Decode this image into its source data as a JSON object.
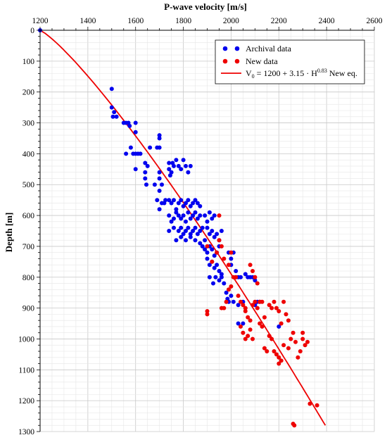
{
  "chart_data": {
    "type": "scatter",
    "title": "P-wave velocity [m/s]",
    "xlabel": "P-wave velocity [m/s]",
    "ylabel": "Depth [m]",
    "xlim": [
      1200,
      2600
    ],
    "ylim": [
      0,
      1300
    ],
    "y_inverted": true,
    "x_axis_position": "top",
    "x_ticks": [
      1200,
      1400,
      1600,
      1800,
      2000,
      2200,
      2400,
      2600
    ],
    "y_ticks": [
      0,
      100,
      200,
      300,
      400,
      500,
      600,
      700,
      800,
      900,
      1000,
      1100,
      1200,
      1300
    ],
    "grid": true,
    "legend_position": "top-right",
    "series": [
      {
        "name": "Archival data",
        "kind": "scatter",
        "color": "#0000ee",
        "points": [
          [
            1200,
            0
          ],
          [
            1500,
            190
          ],
          [
            1500,
            250
          ],
          [
            1505,
            280
          ],
          [
            1520,
            280
          ],
          [
            1510,
            265
          ],
          [
            1550,
            300
          ],
          [
            1560,
            300
          ],
          [
            1570,
            300
          ],
          [
            1575,
            310
          ],
          [
            1600,
            300
          ],
          [
            1600,
            330
          ],
          [
            1560,
            400
          ],
          [
            1590,
            400
          ],
          [
            1600,
            400
          ],
          [
            1610,
            400
          ],
          [
            1580,
            380
          ],
          [
            1600,
            450
          ],
          [
            1640,
            430
          ],
          [
            1650,
            440
          ],
          [
            1640,
            460
          ],
          [
            1620,
            400
          ],
          [
            1660,
            380
          ],
          [
            1690,
            380
          ],
          [
            1700,
            340
          ],
          [
            1700,
            350
          ],
          [
            1700,
            380
          ],
          [
            1640,
            480
          ],
          [
            1645,
            500
          ],
          [
            1680,
            500
          ],
          [
            1700,
            460
          ],
          [
            1700,
            480
          ],
          [
            1710,
            500
          ],
          [
            1690,
            550
          ],
          [
            1700,
            520
          ],
          [
            1700,
            580
          ],
          [
            1710,
            560
          ],
          [
            1720,
            560
          ],
          [
            1725,
            550
          ],
          [
            1740,
            430
          ],
          [
            1740,
            450
          ],
          [
            1745,
            470
          ],
          [
            1750,
            460
          ],
          [
            1755,
            430
          ],
          [
            1760,
            440
          ],
          [
            1770,
            420
          ],
          [
            1780,
            440
          ],
          [
            1790,
            450
          ],
          [
            1800,
            420
          ],
          [
            1810,
            440
          ],
          [
            1820,
            460
          ],
          [
            1830,
            440
          ],
          [
            1740,
            550
          ],
          [
            1750,
            560
          ],
          [
            1760,
            550
          ],
          [
            1770,
            580
          ],
          [
            1780,
            560
          ],
          [
            1790,
            550
          ],
          [
            1800,
            570
          ],
          [
            1810,
            560
          ],
          [
            1820,
            550
          ],
          [
            1830,
            570
          ],
          [
            1840,
            560
          ],
          [
            1850,
            550
          ],
          [
            1860,
            560
          ],
          [
            1870,
            570
          ],
          [
            1740,
            600
          ],
          [
            1750,
            620
          ],
          [
            1760,
            610
          ],
          [
            1770,
            590
          ],
          [
            1780,
            600
          ],
          [
            1790,
            610
          ],
          [
            1800,
            600
          ],
          [
            1810,
            620
          ],
          [
            1820,
            590
          ],
          [
            1830,
            610
          ],
          [
            1840,
            600
          ],
          [
            1850,
            590
          ],
          [
            1860,
            610
          ],
          [
            1870,
            600
          ],
          [
            1740,
            650
          ],
          [
            1760,
            640
          ],
          [
            1780,
            650
          ],
          [
            1790,
            640
          ],
          [
            1800,
            660
          ],
          [
            1810,
            650
          ],
          [
            1820,
            640
          ],
          [
            1830,
            660
          ],
          [
            1840,
            650
          ],
          [
            1850,
            640
          ],
          [
            1860,
            660
          ],
          [
            1870,
            650
          ],
          [
            1880,
            640
          ],
          [
            1770,
            680
          ],
          [
            1790,
            670
          ],
          [
            1810,
            680
          ],
          [
            1830,
            670
          ],
          [
            1850,
            680
          ],
          [
            1870,
            690
          ],
          [
            1890,
            680
          ],
          [
            1890,
            600
          ],
          [
            1900,
            620
          ],
          [
            1910,
            590
          ],
          [
            1920,
            610
          ],
          [
            1930,
            600
          ],
          [
            1900,
            640
          ],
          [
            1910,
            660
          ],
          [
            1920,
            650
          ],
          [
            1930,
            670
          ],
          [
            1940,
            660
          ],
          [
            1950,
            680
          ],
          [
            1960,
            650
          ],
          [
            1950,
            700
          ],
          [
            1880,
            700
          ],
          [
            1890,
            710
          ],
          [
            1900,
            720
          ],
          [
            1910,
            700
          ],
          [
            1920,
            710
          ],
          [
            1930,
            730
          ],
          [
            1940,
            720
          ],
          [
            1900,
            740
          ],
          [
            1910,
            760
          ],
          [
            1920,
            750
          ],
          [
            1930,
            770
          ],
          [
            1940,
            760
          ],
          [
            1950,
            780
          ],
          [
            1960,
            790
          ],
          [
            1910,
            800
          ],
          [
            1925,
            820
          ],
          [
            1935,
            800
          ],
          [
            1950,
            810
          ],
          [
            1960,
            800
          ],
          [
            1970,
            820
          ],
          [
            1980,
            850
          ],
          [
            1990,
            720
          ],
          [
            2000,
            740
          ],
          [
            2000,
            760
          ],
          [
            2010,
            720
          ],
          [
            2020,
            780
          ],
          [
            2020,
            800
          ],
          [
            2030,
            800
          ],
          [
            1985,
            870
          ],
          [
            1990,
            880
          ],
          [
            2000,
            860
          ],
          [
            2010,
            880
          ],
          [
            2030,
            890
          ],
          [
            2050,
            880
          ],
          [
            2040,
            800
          ],
          [
            2060,
            790
          ],
          [
            2070,
            800
          ],
          [
            2080,
            800
          ],
          [
            2090,
            800
          ],
          [
            2100,
            810
          ],
          [
            2030,
            950
          ],
          [
            2050,
            950
          ],
          [
            2100,
            890
          ],
          [
            2110,
            880
          ],
          [
            2120,
            880
          ],
          [
            2200,
            960
          ]
        ]
      },
      {
        "name": "New data",
        "kind": "scatter",
        "color": "#ee0000",
        "points": [
          [
            1950,
            600
          ],
          [
            1900,
            700
          ],
          [
            1920,
            750
          ],
          [
            1940,
            720
          ],
          [
            1950,
            680
          ],
          [
            1960,
            700
          ],
          [
            1970,
            740
          ],
          [
            1990,
            760
          ],
          [
            2000,
            720
          ],
          [
            2010,
            800
          ],
          [
            2000,
            830
          ],
          [
            1990,
            840
          ],
          [
            1900,
            910
          ],
          [
            1900,
            920
          ],
          [
            1960,
            900
          ],
          [
            1970,
            900
          ],
          [
            1980,
            880
          ],
          [
            2020,
            800
          ],
          [
            2030,
            860
          ],
          [
            2040,
            880
          ],
          [
            2050,
            890
          ],
          [
            2060,
            900
          ],
          [
            2060,
            910
          ],
          [
            2070,
            930
          ],
          [
            2080,
            940
          ],
          [
            2090,
            890
          ],
          [
            2100,
            880
          ],
          [
            2110,
            900
          ],
          [
            2120,
            880
          ],
          [
            2080,
            760
          ],
          [
            2090,
            780
          ],
          [
            2100,
            800
          ],
          [
            2110,
            820
          ],
          [
            2130,
            880
          ],
          [
            2040,
            960
          ],
          [
            2050,
            980
          ],
          [
            2060,
            1000
          ],
          [
            2070,
            990
          ],
          [
            2080,
            970
          ],
          [
            2090,
            1000
          ],
          [
            2120,
            950
          ],
          [
            2130,
            960
          ],
          [
            2140,
            930
          ],
          [
            2160,
            890
          ],
          [
            2170,
            900
          ],
          [
            2180,
            880
          ],
          [
            2140,
            1030
          ],
          [
            2150,
            1040
          ],
          [
            2160,
            990
          ],
          [
            2170,
            1000
          ],
          [
            2180,
            1040
          ],
          [
            2190,
            1050
          ],
          [
            2190,
            900
          ],
          [
            2200,
            910
          ],
          [
            2210,
            950
          ],
          [
            2220,
            880
          ],
          [
            2230,
            920
          ],
          [
            2240,
            940
          ],
          [
            2200,
            1060
          ],
          [
            2210,
            1070
          ],
          [
            2200,
            1080
          ],
          [
            2220,
            1020
          ],
          [
            2240,
            1030
          ],
          [
            2250,
            1000
          ],
          [
            2260,
            980
          ],
          [
            2270,
            1010
          ],
          [
            2280,
            1060
          ],
          [
            2290,
            1040
          ],
          [
            2300,
            1000
          ],
          [
            2310,
            1020
          ],
          [
            2320,
            1010
          ],
          [
            2300,
            980
          ],
          [
            2330,
            1210
          ],
          [
            2360,
            1215
          ],
          [
            2260,
            1275
          ],
          [
            2265,
            1280
          ]
        ]
      },
      {
        "name": "V0 = 1200 + 3.15 · H^0.83 New eq.",
        "kind": "line",
        "color": "#ee0000",
        "equation": {
          "a": 1200,
          "b": 3.15,
          "p": 0.83
        },
        "depth_range": [
          0,
          1280
        ]
      }
    ],
    "legend": {
      "archival_label": "Archival data",
      "new_label": "New data",
      "eq_prefix": "V",
      "eq_sub": "0",
      "eq_mid": " = 1200 + 3.15 · H",
      "eq_sup": "0.83",
      "eq_suffix": " New eq."
    }
  }
}
